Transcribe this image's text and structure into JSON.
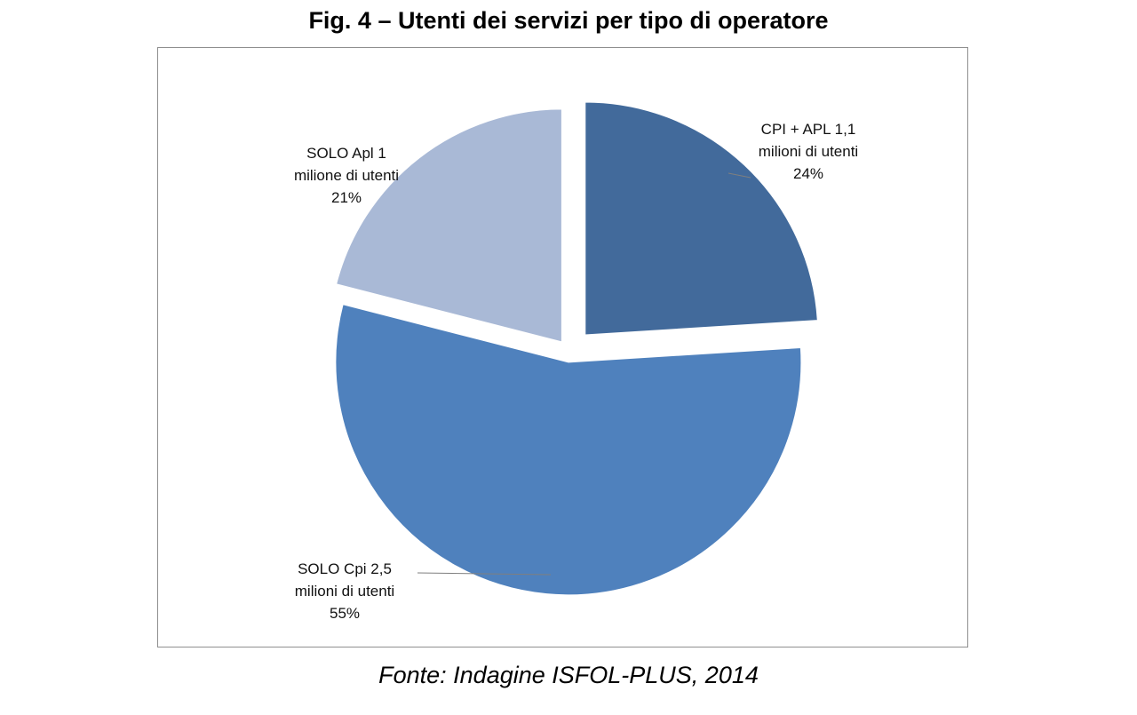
{
  "figure": {
    "title": "Fig. 4 – Utenti dei servizi per tipo di operatore",
    "source": "Fonte: Indagine ISFOL-PLUS, 2014"
  },
  "chart_data": {
    "type": "pie",
    "title": "Fig. 4 – Utenti dei servizi per tipo di operatore",
    "slices": [
      {
        "label_line1": "CPI + APL 1,1",
        "label_line2": "milioni di utenti",
        "percent_label": "24%",
        "value": 24,
        "color": "#426a9b"
      },
      {
        "label_line1": "SOLO Cpi  2,5",
        "label_line2": "milioni di utenti",
        "percent_label": "55%",
        "value": 55,
        "color": "#4f81bd"
      },
      {
        "label_line1": "SOLO Apl  1",
        "label_line2": "milione di utenti",
        "percent_label": "21%",
        "value": 21,
        "color": "#a9b9d6"
      }
    ]
  }
}
